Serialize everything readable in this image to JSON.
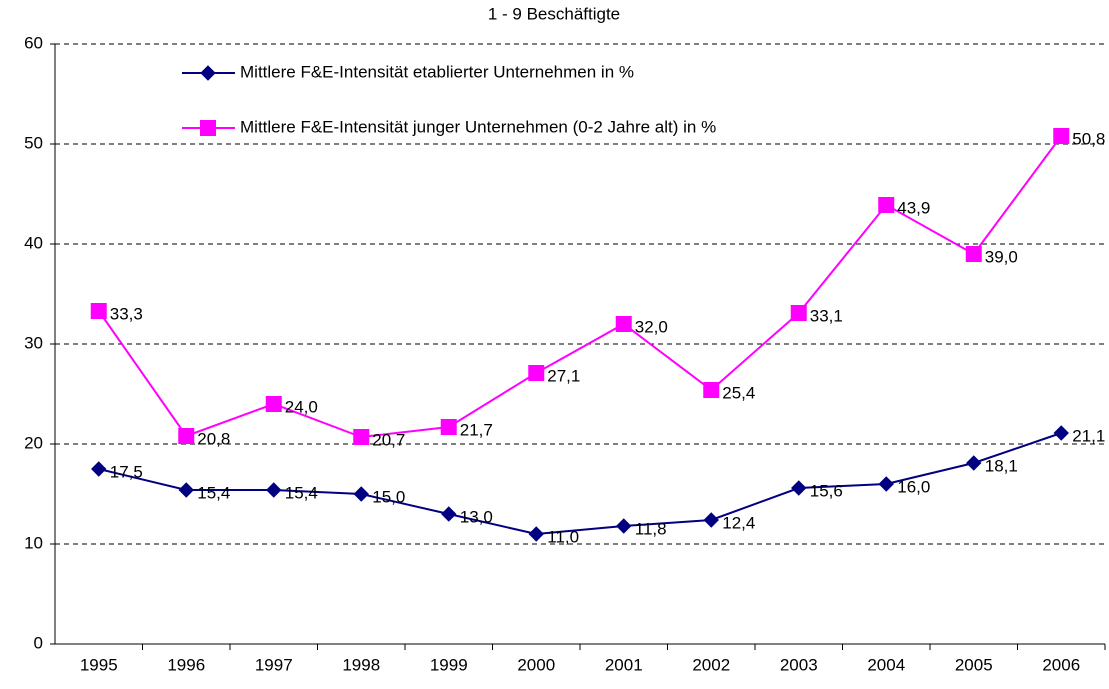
{
  "chart_data": {
    "type": "line",
    "title": "1 - 9 Beschäftigte",
    "categories": [
      "1995",
      "1996",
      "1997",
      "1998",
      "1999",
      "2000",
      "2001",
      "2002",
      "2003",
      "2004",
      "2005",
      "2006"
    ],
    "series": [
      {
        "name": "Mittlere F&E-Intensität etablierter Unternehmen in %",
        "color": "#000080",
        "marker": "diamond",
        "values": [
          17.5,
          15.4,
          15.4,
          15.0,
          13.0,
          11.0,
          11.8,
          12.4,
          15.6,
          16.0,
          18.1,
          21.1
        ],
        "value_labels": [
          "17,5",
          "15,4",
          "15,4",
          "15,0",
          "13,0",
          "11,0",
          "11,8",
          "12,4",
          "15,6",
          "16,0",
          "18,1",
          "21,1"
        ]
      },
      {
        "name": "Mittlere F&E-Intensität junger Unternehmen (0-2 Jahre alt) in %",
        "color": "#ff00ff",
        "marker": "square",
        "values": [
          33.3,
          20.8,
          24.0,
          20.7,
          21.7,
          27.1,
          32.0,
          25.4,
          33.1,
          43.9,
          39.0,
          50.8
        ],
        "value_labels": [
          "33,3",
          "20,8",
          "24,0",
          "20,7",
          "21,7",
          "27,1",
          "32,0",
          "25,4",
          "33,1",
          "43,9",
          "39,0",
          "50,8"
        ]
      }
    ],
    "ylim": [
      0,
      60
    ],
    "yticks": [
      0,
      10,
      20,
      30,
      40,
      50,
      60
    ],
    "grid": true
  }
}
